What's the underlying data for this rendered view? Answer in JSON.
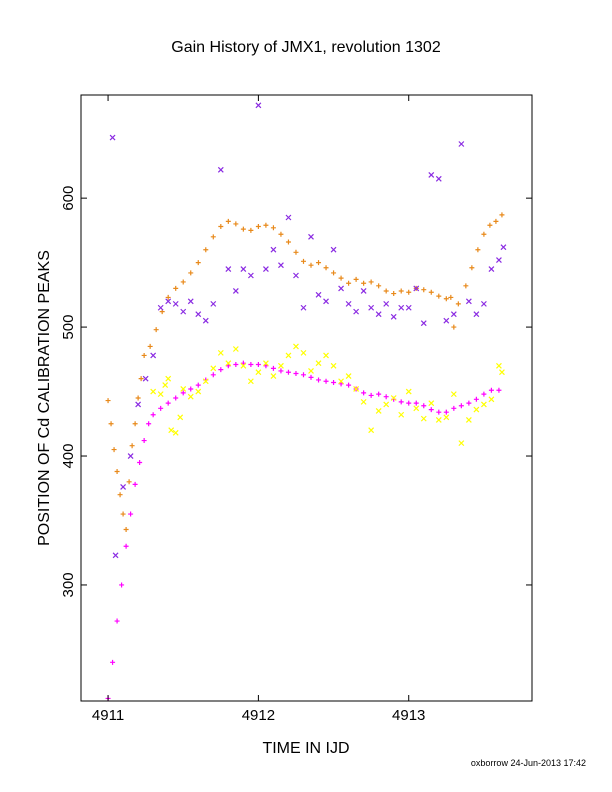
{
  "chart_data": {
    "type": "scatter",
    "title": "Gain History of JMX1, revolution 1302",
    "xlabel": "TIME IN IJD",
    "ylabel": "POSITION OF Cd CALIBRATION PEAKS",
    "xlim": [
      4910.82,
      4913.82
    ],
    "ylim": [
      210,
      680
    ],
    "xticks": [
      4911,
      4912,
      4913
    ],
    "yticks": [
      300,
      400,
      500,
      600
    ],
    "grid": false,
    "legend": "none",
    "series": [
      {
        "color": "#e8891a",
        "marker": "plus",
        "points": [
          [
            4911.0,
            443
          ],
          [
            4911.02,
            425
          ],
          [
            4911.04,
            405
          ],
          [
            4911.06,
            388
          ],
          [
            4911.08,
            370
          ],
          [
            4911.1,
            355
          ],
          [
            4911.12,
            343
          ],
          [
            4911.14,
            380
          ],
          [
            4911.16,
            408
          ],
          [
            4911.18,
            425
          ],
          [
            4911.2,
            445
          ],
          [
            4911.22,
            460
          ],
          [
            4911.24,
            478
          ],
          [
            4911.28,
            485
          ],
          [
            4911.32,
            498
          ],
          [
            4911.36,
            512
          ],
          [
            4911.4,
            523
          ],
          [
            4911.45,
            530
          ],
          [
            4911.5,
            535
          ],
          [
            4911.55,
            542
          ],
          [
            4911.6,
            550
          ],
          [
            4911.65,
            560
          ],
          [
            4911.7,
            570
          ],
          [
            4911.75,
            578
          ],
          [
            4911.8,
            582
          ],
          [
            4911.85,
            580
          ],
          [
            4911.9,
            576
          ],
          [
            4911.95,
            575
          ],
          [
            4912.0,
            578
          ],
          [
            4912.05,
            579
          ],
          [
            4912.1,
            577
          ],
          [
            4912.15,
            572
          ],
          [
            4912.2,
            566
          ],
          [
            4912.25,
            558
          ],
          [
            4912.3,
            551
          ],
          [
            4912.35,
            548
          ],
          [
            4912.4,
            550
          ],
          [
            4912.45,
            546
          ],
          [
            4912.5,
            542
          ],
          [
            4912.55,
            538
          ],
          [
            4912.6,
            534
          ],
          [
            4912.65,
            537
          ],
          [
            4912.7,
            534
          ],
          [
            4912.75,
            535
          ],
          [
            4912.8,
            532
          ],
          [
            4912.85,
            528
          ],
          [
            4912.9,
            526
          ],
          [
            4912.95,
            528
          ],
          [
            4913.0,
            527
          ],
          [
            4913.05,
            530
          ],
          [
            4913.1,
            529
          ],
          [
            4913.15,
            527
          ],
          [
            4913.2,
            524
          ],
          [
            4913.25,
            522
          ],
          [
            4913.28,
            523
          ],
          [
            4913.3,
            500
          ],
          [
            4913.33,
            518
          ],
          [
            4913.38,
            532
          ],
          [
            4913.42,
            546
          ],
          [
            4913.46,
            560
          ],
          [
            4913.5,
            572
          ],
          [
            4913.54,
            579
          ],
          [
            4913.58,
            582
          ],
          [
            4913.62,
            587
          ]
        ]
      },
      {
        "color": "#ff00ff",
        "marker": "plus",
        "points": [
          [
            4911.0,
            212
          ],
          [
            4911.03,
            240
          ],
          [
            4911.06,
            272
          ],
          [
            4911.09,
            300
          ],
          [
            4911.12,
            330
          ],
          [
            4911.15,
            355
          ],
          [
            4911.18,
            378
          ],
          [
            4911.21,
            395
          ],
          [
            4911.24,
            412
          ],
          [
            4911.27,
            425
          ],
          [
            4911.3,
            432
          ],
          [
            4911.35,
            437
          ],
          [
            4911.4,
            441
          ],
          [
            4911.45,
            445
          ],
          [
            4911.5,
            449
          ],
          [
            4911.55,
            452
          ],
          [
            4911.6,
            455
          ],
          [
            4911.65,
            459
          ],
          [
            4911.7,
            463
          ],
          [
            4911.75,
            467
          ],
          [
            4911.8,
            470
          ],
          [
            4911.85,
            471
          ],
          [
            4911.9,
            472
          ],
          [
            4911.95,
            471
          ],
          [
            4912.0,
            471
          ],
          [
            4912.05,
            470
          ],
          [
            4912.1,
            468
          ],
          [
            4912.15,
            466
          ],
          [
            4912.2,
            465
          ],
          [
            4912.25,
            464
          ],
          [
            4912.3,
            463
          ],
          [
            4912.35,
            461
          ],
          [
            4912.4,
            459
          ],
          [
            4912.45,
            458
          ],
          [
            4912.5,
            457
          ],
          [
            4912.55,
            456
          ],
          [
            4912.6,
            455
          ],
          [
            4912.65,
            452
          ],
          [
            4912.7,
            449
          ],
          [
            4912.75,
            447
          ],
          [
            4912.8,
            448
          ],
          [
            4912.85,
            446
          ],
          [
            4912.9,
            444
          ],
          [
            4912.95,
            442
          ],
          [
            4913.0,
            441
          ],
          [
            4913.05,
            441
          ],
          [
            4913.1,
            439
          ],
          [
            4913.15,
            436
          ],
          [
            4913.2,
            434
          ],
          [
            4913.25,
            434
          ],
          [
            4913.3,
            437
          ],
          [
            4913.35,
            439
          ],
          [
            4913.4,
            441
          ],
          [
            4913.45,
            444
          ],
          [
            4913.5,
            448
          ],
          [
            4913.55,
            451
          ],
          [
            4913.6,
            451
          ]
        ]
      },
      {
        "color": "#ffff00",
        "marker": "cross",
        "points": [
          [
            4911.3,
            450
          ],
          [
            4911.35,
            448
          ],
          [
            4911.38,
            455
          ],
          [
            4911.4,
            460
          ],
          [
            4911.42,
            420
          ],
          [
            4911.45,
            418
          ],
          [
            4911.48,
            430
          ],
          [
            4911.5,
            452
          ],
          [
            4911.55,
            446
          ],
          [
            4911.6,
            450
          ],
          [
            4911.65,
            458
          ],
          [
            4911.7,
            468
          ],
          [
            4911.75,
            480
          ],
          [
            4911.8,
            472
          ],
          [
            4911.85,
            483
          ],
          [
            4911.9,
            470
          ],
          [
            4911.95,
            458
          ],
          [
            4912.0,
            465
          ],
          [
            4912.05,
            472
          ],
          [
            4912.1,
            462
          ],
          [
            4912.15,
            470
          ],
          [
            4912.2,
            478
          ],
          [
            4912.25,
            485
          ],
          [
            4912.3,
            480
          ],
          [
            4912.35,
            466
          ],
          [
            4912.4,
            472
          ],
          [
            4912.45,
            478
          ],
          [
            4912.5,
            470
          ],
          [
            4912.55,
            458
          ],
          [
            4912.6,
            462
          ],
          [
            4912.65,
            452
          ],
          [
            4912.7,
            442
          ],
          [
            4912.75,
            420
          ],
          [
            4912.8,
            435
          ],
          [
            4912.85,
            440
          ],
          [
            4912.9,
            445
          ],
          [
            4912.95,
            432
          ],
          [
            4913.0,
            450
          ],
          [
            4913.05,
            437
          ],
          [
            4913.1,
            429
          ],
          [
            4913.15,
            441
          ],
          [
            4913.2,
            428
          ],
          [
            4913.25,
            430
          ],
          [
            4913.3,
            448
          ],
          [
            4913.35,
            410
          ],
          [
            4913.4,
            428
          ],
          [
            4913.45,
            436
          ],
          [
            4913.5,
            440
          ],
          [
            4913.55,
            444
          ],
          [
            4913.6,
            470
          ],
          [
            4913.62,
            465
          ]
        ]
      },
      {
        "color": "#8a2be2",
        "marker": "cross",
        "points": [
          [
            4911.03,
            647
          ],
          [
            4911.05,
            323
          ],
          [
            4911.1,
            376
          ],
          [
            4911.15,
            400
          ],
          [
            4911.2,
            440
          ],
          [
            4911.25,
            460
          ],
          [
            4911.3,
            478
          ],
          [
            4911.35,
            515
          ],
          [
            4911.4,
            520
          ],
          [
            4911.45,
            518
          ],
          [
            4911.5,
            512
          ],
          [
            4911.55,
            520
          ],
          [
            4911.6,
            510
          ],
          [
            4911.65,
            505
          ],
          [
            4911.7,
            518
          ],
          [
            4911.75,
            622
          ],
          [
            4911.8,
            545
          ],
          [
            4911.85,
            528
          ],
          [
            4911.9,
            545
          ],
          [
            4911.95,
            540
          ],
          [
            4912.0,
            672
          ],
          [
            4912.05,
            545
          ],
          [
            4912.1,
            560
          ],
          [
            4912.15,
            548
          ],
          [
            4912.2,
            585
          ],
          [
            4912.25,
            540
          ],
          [
            4912.3,
            515
          ],
          [
            4912.35,
            570
          ],
          [
            4912.4,
            525
          ],
          [
            4912.45,
            520
          ],
          [
            4912.5,
            560
          ],
          [
            4912.55,
            530
          ],
          [
            4912.6,
            518
          ],
          [
            4912.65,
            512
          ],
          [
            4912.7,
            528
          ],
          [
            4912.75,
            515
          ],
          [
            4912.8,
            510
          ],
          [
            4912.85,
            518
          ],
          [
            4912.9,
            508
          ],
          [
            4912.95,
            515
          ],
          [
            4913.0,
            515
          ],
          [
            4913.05,
            530
          ],
          [
            4913.1,
            503
          ],
          [
            4913.15,
            618
          ],
          [
            4913.2,
            615
          ],
          [
            4913.25,
            505
          ],
          [
            4913.3,
            510
          ],
          [
            4913.35,
            642
          ],
          [
            4913.4,
            520
          ],
          [
            4913.45,
            510
          ],
          [
            4913.5,
            518
          ],
          [
            4913.55,
            545
          ],
          [
            4913.6,
            552
          ],
          [
            4913.63,
            562
          ]
        ]
      }
    ]
  },
  "footer": {
    "stamp": "oxborrow 24-Jun-2013 17:42"
  }
}
